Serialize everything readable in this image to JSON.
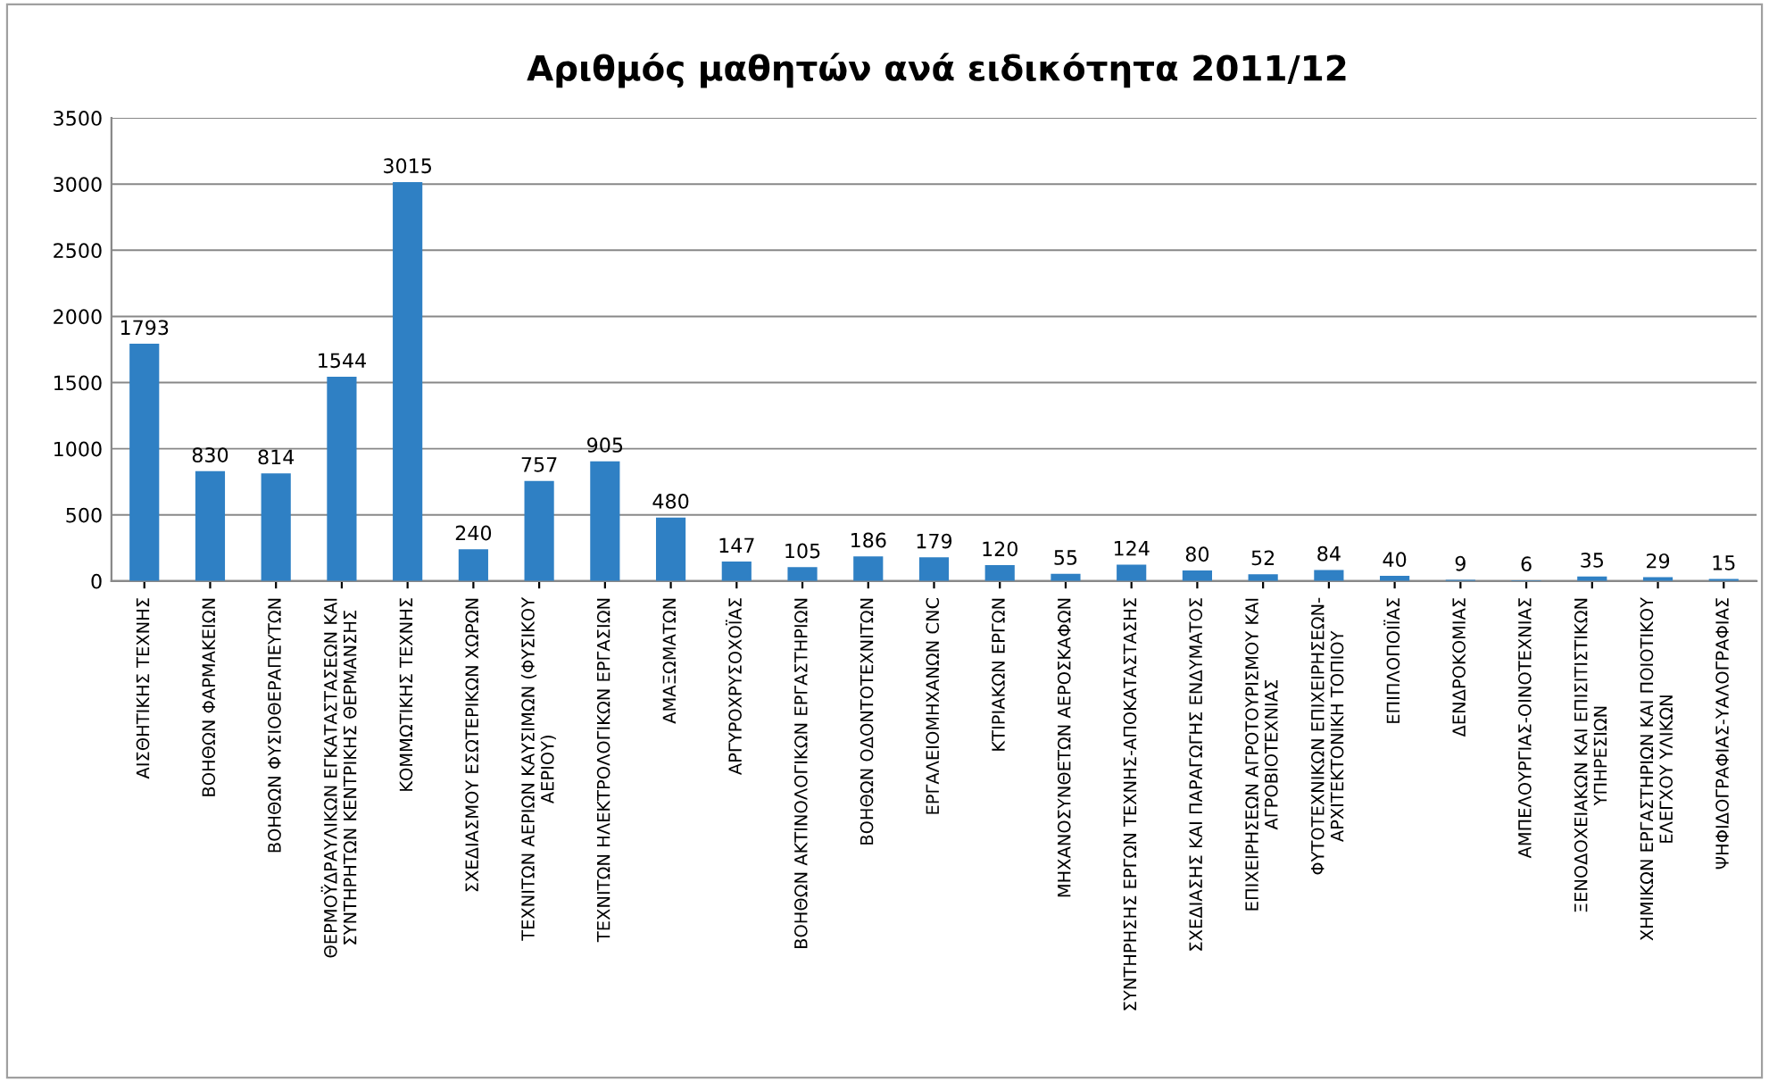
{
  "chart_data": {
    "type": "bar",
    "title": "Αριθμός μαθητών ανά ειδικότητα 2011/12",
    "categories": [
      "ΑΙΣΘΗΤΙΚΗΣ ΤΕΧΝΗΣ",
      "ΒΟΗΘΩΝ ΦΑΡΜΑΚΕΙΩΝ",
      "ΒΟΗΘΩΝ ΦΥΣΙΟΘΕΡΑΠΕΥΤΩΝ",
      "ΘΕΡΜΟΫΔΡΑΥΛΙΚΩΝ ΕΓΚΑΤΑΣΤΑΣΕΩΝ ΚΑΙ\nΣΥΝΤΗΡΗΤΩΝ ΚΕΝΤΡΙΚΗΣ ΘΕΡΜΑΝΣΗΣ",
      "ΚΟΜΜΩΤΙΚΗΣ ΤΕΧΝΗΣ",
      "ΣΧΕΔΙΑΣΜΟΥ ΕΣΩΤΕΡΙΚΩΝ ΧΩΡΩΝ",
      "ΤΕΧΝΙΤΩΝ ΑΕΡΙΩΝ ΚΑΥΣΙΜΩΝ (ΦΥΣΙΚΟΥ\nΑΕΡΙΟΥ)",
      "ΤΕΧΝΙΤΩΝ ΗΛΕΚΤΡΟΛΟΓΙΚΩΝ ΕΡΓΑΣΙΩΝ",
      "ΑΜΑΞΩΜΑΤΩΝ",
      "ΑΡΓΥΡΟΧΡΥΣΟΧΟΪΑΣ",
      "ΒΟΗΘΩΝ ΑΚΤΙΝΟΛΟΓΙΚΩΝ ΕΡΓΑΣΤΗΡΙΩΝ",
      "ΒΟΗΘΩΝ ΟΔΟΝΤΟΤΕΧΝΙΤΩΝ",
      "ΕΡΓΑΛΕΙΟΜΗΧΑΝΩΝ CNC",
      "ΚΤΙΡΙΑΚΩΝ ΕΡΓΩΝ",
      "ΜΗΧΑΝΟΣΥΝΘΕΤΩΝ ΑΕΡΟΣΚΑΦΩΝ",
      "ΣΥΝΤΗΡΗΣΗΣ ΕΡΓΩΝ ΤΕΧΝΗΣ-ΑΠΟΚΑΤΑΣΤΑΣΗΣ",
      "ΣΧΕΔΙΑΣΗΣ ΚΑΙ ΠΑΡΑΓΩΓΗΣ ΕΝΔΥΜΑΤΟΣ",
      "ΕΠΙΧΕΙΡΗΣΕΩΝ ΑΓΡΟΤΟΥΡΙΣΜΟΥ ΚΑΙ\nΑΓΡΟΒΙΟΤΕΧΝΙΑΣ",
      "ΦΥΤΟΤΕΧΝΙΚΩΝ ΕΠΙΧΕΙΡΗΣΕΩΝ-\nΑΡΧΙΤΕΚΤΟΝΙΚΗ ΤΟΠΙΟΥ",
      "ΕΠΙΠΛΟΠΟΙΪΑΣ",
      "ΔΕΝΔΡΟΚΟΜΙΑΣ",
      "ΑΜΠΕΛΟΥΡΓΙΑΣ-ΟΙΝΟΤΕΧΝΙΑΣ",
      "ΞΕΝΟΔΟΧΕΙΑΚΩΝ ΚΑΙ ΕΠΙΣΙΤΙΣΤΙΚΩΝ\nΥΠΗΡΕΣΙΩΝ",
      "ΧΗΜΙΚΩΝ ΕΡΓΑΣΤΗΡΙΩΝ ΚΑΙ ΠΟΙΟΤΙΚΟΥ\nΕΛΕΓΧΟΥ ΥΛΙΚΩΝ",
      "ΨΗΦΙΔΟΓΡΑΦΙΑΣ-ΥΑΛΟΓΡΑΦΙΑΣ"
    ],
    "values": [
      1793,
      830,
      814,
      1544,
      3015,
      240,
      757,
      905,
      480,
      147,
      105,
      186,
      179,
      120,
      55,
      124,
      80,
      52,
      84,
      40,
      9,
      6,
      35,
      29,
      15
    ],
    "color": "#2f80c4",
    "ylim": [
      0,
      3500
    ],
    "yticks": [
      0,
      500,
      1000,
      1500,
      2000,
      2500,
      3000,
      3500
    ],
    "grid": "y",
    "data_labels": true
  }
}
